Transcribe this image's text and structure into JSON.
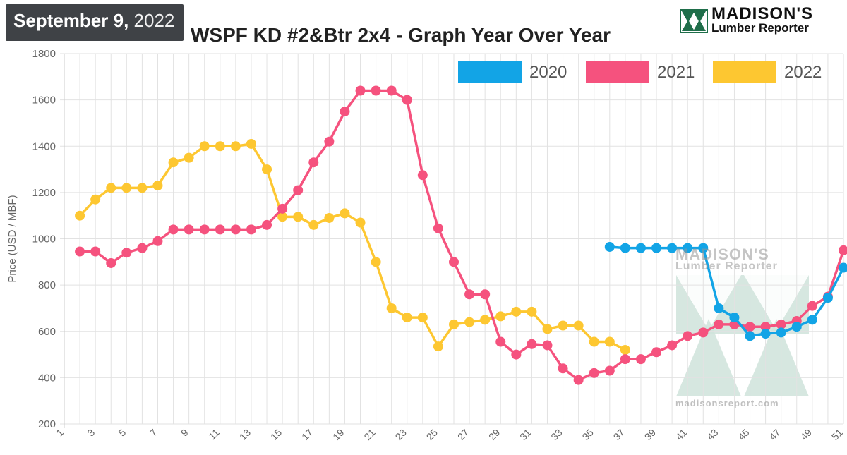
{
  "header": {
    "date_bold": "September 9,",
    "date_year": " 2022",
    "title": "WSPF KD #2&Btr 2x4 - Graph Year Over Year"
  },
  "logo": {
    "name": "MADISON'S",
    "sub": "Lumber Reporter"
  },
  "watermark": {
    "name": "MADISON'S",
    "sub": "Lumber Reporter",
    "url": "madisonsreport.com"
  },
  "colors": {
    "s2020": "#12a4e6",
    "s2021": "#f5527e",
    "s2022": "#fdc731",
    "grid": "#e2e2e2",
    "axis_text": "#666666",
    "logo_green": "#1f6e4a",
    "watermark_green": "#cfe3db"
  },
  "chart_data": {
    "type": "line",
    "title": "WSPF KD #2&Btr 2x4 - Graph Year Over Year",
    "xlabel": "",
    "ylabel": "Price (USD / MBF)",
    "xlim": [
      1,
      51
    ],
    "ylim": [
      200,
      1800
    ],
    "y_ticks": [
      200,
      400,
      600,
      800,
      1000,
      1200,
      1400,
      1600,
      1800
    ],
    "x_tick_labels": [
      1,
      3,
      5,
      7,
      9,
      11,
      13,
      15,
      17,
      19,
      21,
      23,
      25,
      27,
      29,
      31,
      33,
      35,
      37,
      39,
      41,
      43,
      45,
      47,
      49,
      51
    ],
    "grid": true,
    "legend_position": "top-right",
    "series": [
      {
        "name": "2020",
        "color_key": "s2020",
        "x": [
          36,
          37,
          38,
          39,
          40,
          41,
          42,
          43,
          44,
          45,
          46,
          47,
          48,
          49,
          50,
          51
        ],
        "values": [
          965,
          960,
          960,
          960,
          960,
          960,
          960,
          700,
          660,
          580,
          590,
          595,
          620,
          650,
          745,
          875
        ]
      },
      {
        "name": "2021",
        "color_key": "s2021",
        "x": [
          2,
          3,
          4,
          5,
          6,
          7,
          8,
          9,
          10,
          11,
          12,
          13,
          14,
          15,
          16,
          17,
          18,
          19,
          20,
          21,
          22,
          23,
          24,
          25,
          26,
          27,
          28,
          29,
          30,
          31,
          32,
          33,
          34,
          35,
          36,
          37,
          38,
          39,
          40,
          41,
          42,
          43,
          44,
          45,
          46,
          47,
          48,
          49,
          50,
          51
        ],
        "values": [
          945,
          945,
          895,
          940,
          960,
          990,
          1040,
          1040,
          1040,
          1040,
          1040,
          1040,
          1060,
          1130,
          1210,
          1330,
          1420,
          1550,
          1640,
          1640,
          1640,
          1600,
          1275,
          1045,
          900,
          760,
          760,
          555,
          500,
          545,
          540,
          440,
          390,
          420,
          430,
          480,
          480,
          510,
          540,
          580,
          595,
          630,
          630,
          620,
          620,
          630,
          645,
          710,
          750,
          950
        ]
      },
      {
        "name": "2022",
        "color_key": "s2022",
        "x": [
          2,
          3,
          4,
          5,
          6,
          7,
          8,
          9,
          10,
          11,
          12,
          13,
          14,
          15,
          16,
          17,
          18,
          19,
          20,
          21,
          22,
          23,
          24,
          25,
          26,
          27,
          28,
          29,
          30,
          31,
          32,
          33,
          34,
          35,
          36,
          37
        ],
        "values": [
          1100,
          1170,
          1220,
          1220,
          1220,
          1230,
          1330,
          1350,
          1400,
          1400,
          1400,
          1410,
          1300,
          1095,
          1095,
          1060,
          1090,
          1110,
          1070,
          900,
          700,
          660,
          660,
          535,
          630,
          640,
          650,
          665,
          685,
          685,
          610,
          625,
          625,
          555,
          555,
          520
        ]
      }
    ]
  }
}
